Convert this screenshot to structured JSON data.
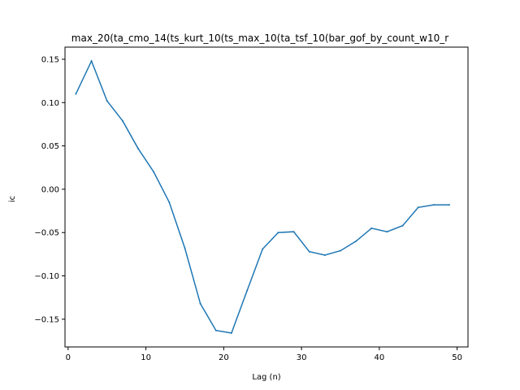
{
  "chart_data": {
    "type": "line",
    "title": "max_20(ta_cmo_14(ts_kurt_10(ts_max_10(ta_tsf_10(bar_gof_by_count_w10_r",
    "xlabel": "Lag (n)",
    "ylabel": "ic",
    "xlim": [
      -0.4,
      51.4
    ],
    "ylim": [
      -0.182,
      0.164
    ],
    "xticks": [
      0,
      10,
      20,
      30,
      40,
      50
    ],
    "yticks": [
      -0.15,
      -0.1,
      -0.05,
      0.0,
      0.05,
      0.1,
      0.15
    ],
    "ytick_labels": [
      "−0.15",
      "−0.10",
      "−0.05",
      "0.00",
      "0.05",
      "0.10",
      "0.15"
    ],
    "grid": false,
    "series": [
      {
        "color": "#1f77b4",
        "x": [
          1,
          3,
          5,
          7,
          9,
          11,
          13,
          15,
          17,
          19,
          21,
          23,
          25,
          27,
          29,
          31,
          33,
          35,
          37,
          39,
          41,
          43,
          45,
          47,
          49
        ],
        "y": [
          0.11,
          0.148,
          0.102,
          0.079,
          0.047,
          0.02,
          -0.015,
          -0.068,
          -0.132,
          -0.163,
          -0.166,
          -0.117,
          -0.069,
          -0.05,
          -0.049,
          -0.072,
          -0.076,
          -0.071,
          -0.06,
          -0.045,
          -0.049,
          -0.042,
          -0.021,
          -0.018,
          -0.018
        ]
      }
    ]
  }
}
